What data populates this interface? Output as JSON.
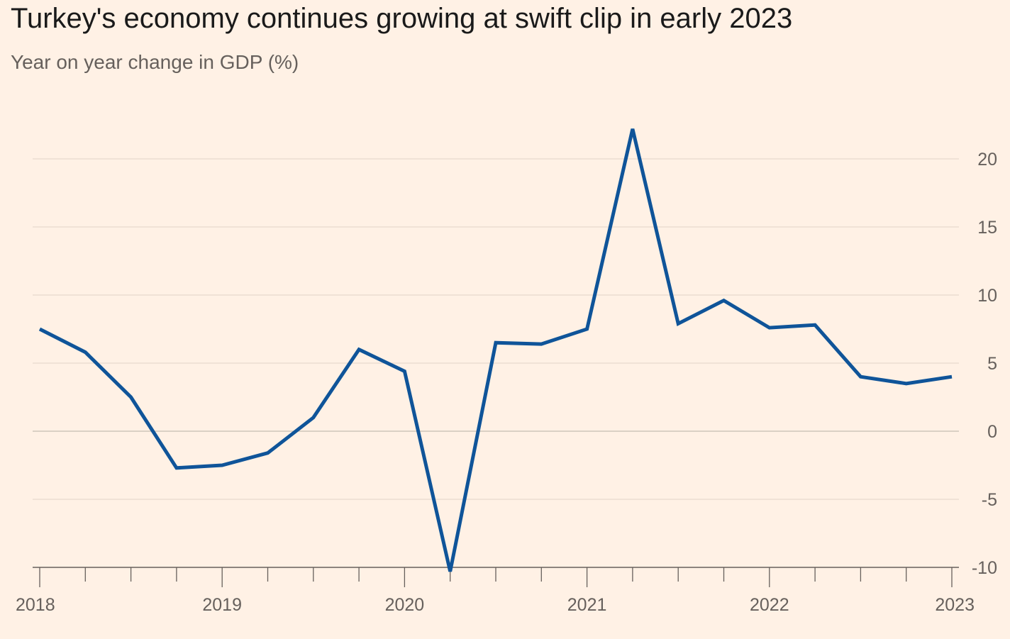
{
  "chart_data": {
    "type": "line",
    "title": "Turkey's economy continues growing at swift clip in early 2023",
    "subtitle": "Year on year change in GDP (%)",
    "xlabel": "",
    "ylabel": "",
    "x_tick_labels": [
      "2018",
      "2019",
      "2020",
      "2021",
      "2022",
      "2023"
    ],
    "y_tick_labels": [
      "20",
      "15",
      "10",
      "5",
      "0",
      "-5",
      "-10"
    ],
    "y_ticks": [
      20,
      15,
      10,
      5,
      0,
      -5,
      -10
    ],
    "ylim": [
      -10,
      20
    ],
    "xlim": [
      2018.0,
      2023.0
    ],
    "grid": true,
    "y_axis_side": "right",
    "series": [
      {
        "color": "#0F5499",
        "points": [
          [
            2018.0,
            7.5
          ],
          [
            2018.25,
            5.8
          ],
          [
            2018.5,
            2.5
          ],
          [
            2018.75,
            -2.7
          ],
          [
            2019.0,
            -2.5
          ],
          [
            2019.25,
            -1.6
          ],
          [
            2019.5,
            1.0
          ],
          [
            2019.75,
            6.0
          ],
          [
            2020.0,
            4.4
          ],
          [
            2020.25,
            -10.3
          ],
          [
            2020.5,
            6.5
          ],
          [
            2020.75,
            6.4
          ],
          [
            2021.0,
            7.5
          ],
          [
            2021.25,
            22.2
          ],
          [
            2021.5,
            7.9
          ],
          [
            2021.75,
            9.6
          ],
          [
            2022.0,
            7.6
          ],
          [
            2022.25,
            7.8
          ],
          [
            2022.5,
            4.0
          ],
          [
            2022.75,
            3.5
          ],
          [
            2023.0,
            4.0
          ]
        ]
      }
    ]
  }
}
